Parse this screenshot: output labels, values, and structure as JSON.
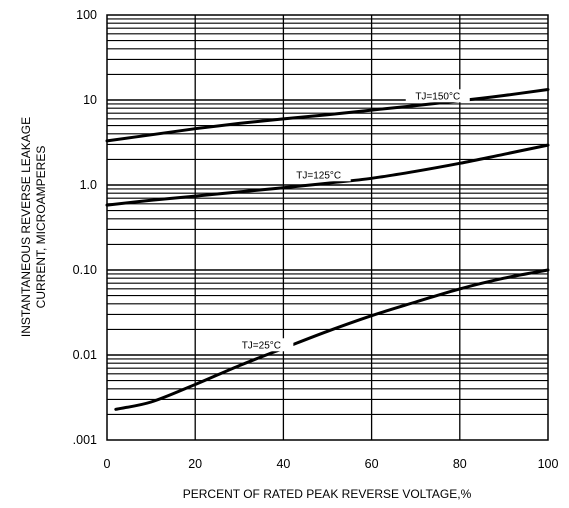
{
  "chart_data": {
    "type": "line",
    "xlabel": "PERCENT OF RATED PEAK REVERSE VOLTAGE,%",
    "ylabel_lines": [
      "INSTANTANEOUS REVERSE LEAKAGE",
      "CURRENT, MICROAMPERES"
    ],
    "x_scale": "linear",
    "y_scale": "log",
    "xlim": [
      0,
      100
    ],
    "ylim": [
      0.001,
      100
    ],
    "grid": true,
    "legend": "none",
    "x_ticks": [
      0,
      20,
      40,
      60,
      80,
      100
    ],
    "x_tick_labels": [
      "0",
      "20",
      "40",
      "60",
      "80",
      "100"
    ],
    "y_ticks": [
      0.001,
      0.01,
      0.1,
      1,
      10,
      100
    ],
    "y_tick_labels": [
      ".001",
      "0.01",
      "0.10",
      "1.0",
      "10",
      "100"
    ],
    "series": [
      {
        "name": "TJ=150°C",
        "label_at": [
          75,
          10.2
        ],
        "x": [
          0,
          10,
          20,
          30,
          40,
          50,
          60,
          70,
          80,
          90,
          100
        ],
        "y": [
          3.3,
          3.9,
          4.6,
          5.3,
          6.0,
          6.7,
          7.6,
          8.6,
          9.8,
          11.3,
          13.3
        ]
      },
      {
        "name": "TJ=125°C",
        "label_at": [
          48,
          1.2
        ],
        "x": [
          0,
          10,
          20,
          30,
          40,
          50,
          60,
          70,
          80,
          90,
          100
        ],
        "y": [
          0.58,
          0.66,
          0.74,
          0.83,
          0.93,
          1.05,
          1.2,
          1.45,
          1.8,
          2.3,
          2.95
        ]
      },
      {
        "name": "TJ=25°C",
        "label_at": [
          35,
          0.012
        ],
        "x": [
          2,
          10,
          20,
          30,
          40,
          50,
          60,
          70,
          80,
          90,
          100
        ],
        "y": [
          0.0023,
          0.0028,
          0.0045,
          0.0075,
          0.012,
          0.019,
          0.029,
          0.042,
          0.06,
          0.08,
          0.1
        ]
      }
    ],
    "colors": {
      "line": "#000000",
      "grid": "#000000",
      "background": "#ffffff"
    }
  }
}
